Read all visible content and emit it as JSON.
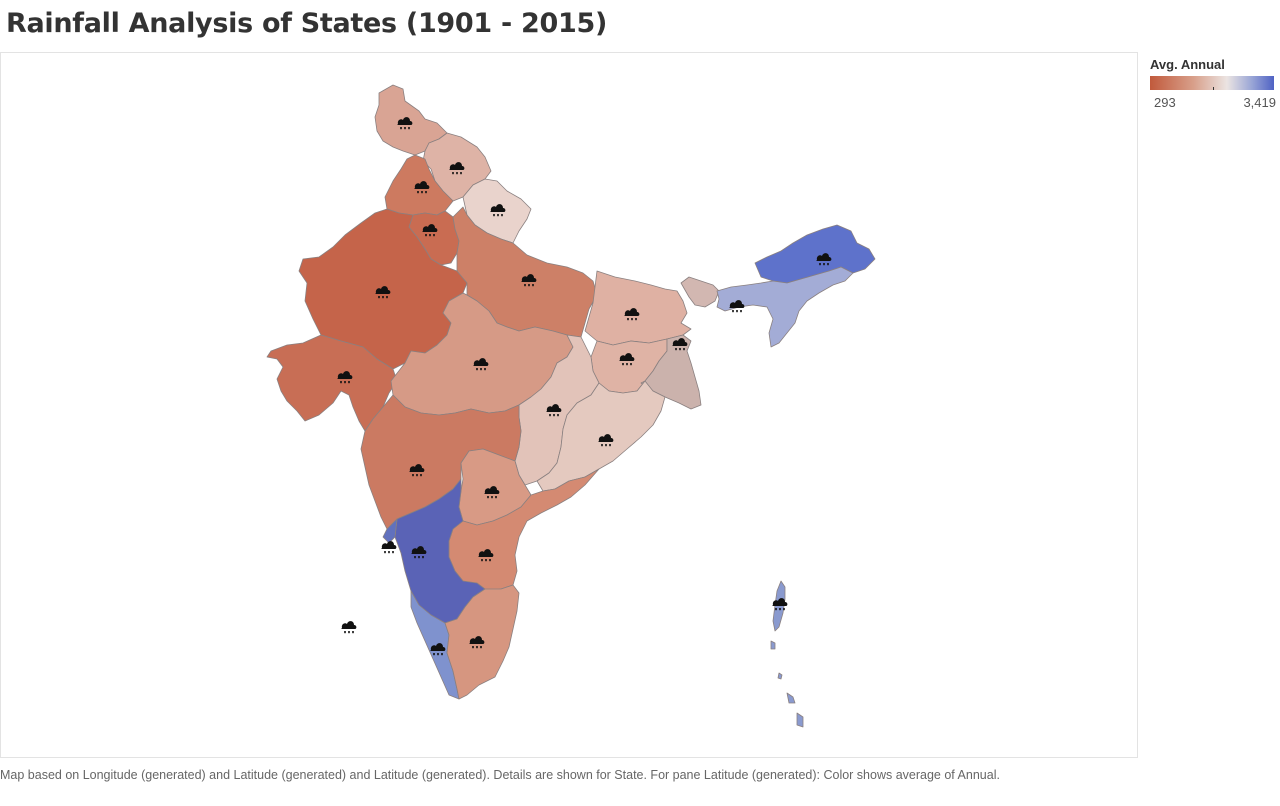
{
  "title": "Rainfall Analysis of States (1901 - 2015)",
  "legend": {
    "title": "Avg. Annual",
    "min_label": "293",
    "max_label": "3,419",
    "min_value": 293,
    "max_value": 3419,
    "color_low": "#c15a3c",
    "color_high": "#4f62c4"
  },
  "footnote": "Map based on Longitude (generated) and Latitude (generated) and Latitude (generated).  Details are shown for State.  For pane Latitude (generated):  Color shows average of Annual.",
  "marker_icon": "rain-cloud-icon",
  "states": [
    {
      "key": "jammu-kashmir",
      "color": "#d9a494"
    },
    {
      "key": "himachal",
      "color": "#deb3a6"
    },
    {
      "key": "punjab",
      "color": "#cd7a60"
    },
    {
      "key": "uttarakhand",
      "color": "#e9d3cc"
    },
    {
      "key": "haryana",
      "color": "#c96c52"
    },
    {
      "key": "rajasthan",
      "color": "#c5644a"
    },
    {
      "key": "uttar-pradesh",
      "color": "#cd8067"
    },
    {
      "key": "bihar",
      "color": "#dfb1a3"
    },
    {
      "key": "gujarat",
      "color": "#c86e55"
    },
    {
      "key": "madhya-pradesh",
      "color": "#d69a86"
    },
    {
      "key": "jharkhand",
      "color": "#dfb3a5"
    },
    {
      "key": "west-bengal",
      "color": "#cbb2ac"
    },
    {
      "key": "sikkim",
      "color": "#d2b7b1"
    },
    {
      "key": "chhattisgarh",
      "color": "#e2c3b9"
    },
    {
      "key": "odisha",
      "color": "#e4c9bf"
    },
    {
      "key": "maharashtra",
      "color": "#cb7a62"
    },
    {
      "key": "telangana",
      "color": "#d89a85"
    },
    {
      "key": "andhra-pradesh",
      "color": "#d48a72"
    },
    {
      "key": "karnataka",
      "color": "#5a63b6"
    },
    {
      "key": "goa",
      "color": "#6171be"
    },
    {
      "key": "kerala",
      "color": "#7f92ce"
    },
    {
      "key": "tamil-nadu",
      "color": "#d69680"
    },
    {
      "key": "arunachal",
      "color": "#5e72cb"
    },
    {
      "key": "assam-ne",
      "color": "#a3acd6"
    },
    {
      "key": "andaman-nicobar",
      "color": "#8a9acf"
    }
  ],
  "markers": [
    {
      "state": "jammu-kashmir"
    },
    {
      "state": "himachal"
    },
    {
      "state": "punjab"
    },
    {
      "state": "uttarakhand"
    },
    {
      "state": "haryana"
    },
    {
      "state": "rajasthan"
    },
    {
      "state": "uttar-pradesh"
    },
    {
      "state": "bihar"
    },
    {
      "state": "gujarat"
    },
    {
      "state": "madhya-pradesh"
    },
    {
      "state": "jharkhand"
    },
    {
      "state": "west-bengal"
    },
    {
      "state": "chhattisgarh"
    },
    {
      "state": "odisha"
    },
    {
      "state": "maharashtra"
    },
    {
      "state": "telangana"
    },
    {
      "state": "andhra-pradesh"
    },
    {
      "state": "karnataka"
    },
    {
      "state": "goa"
    },
    {
      "state": "kerala"
    },
    {
      "state": "tamil-nadu"
    },
    {
      "state": "arunachal"
    },
    {
      "state": "assam-ne"
    },
    {
      "state": "andaman-nicobar"
    },
    {
      "state": "lakshadweep"
    }
  ]
}
